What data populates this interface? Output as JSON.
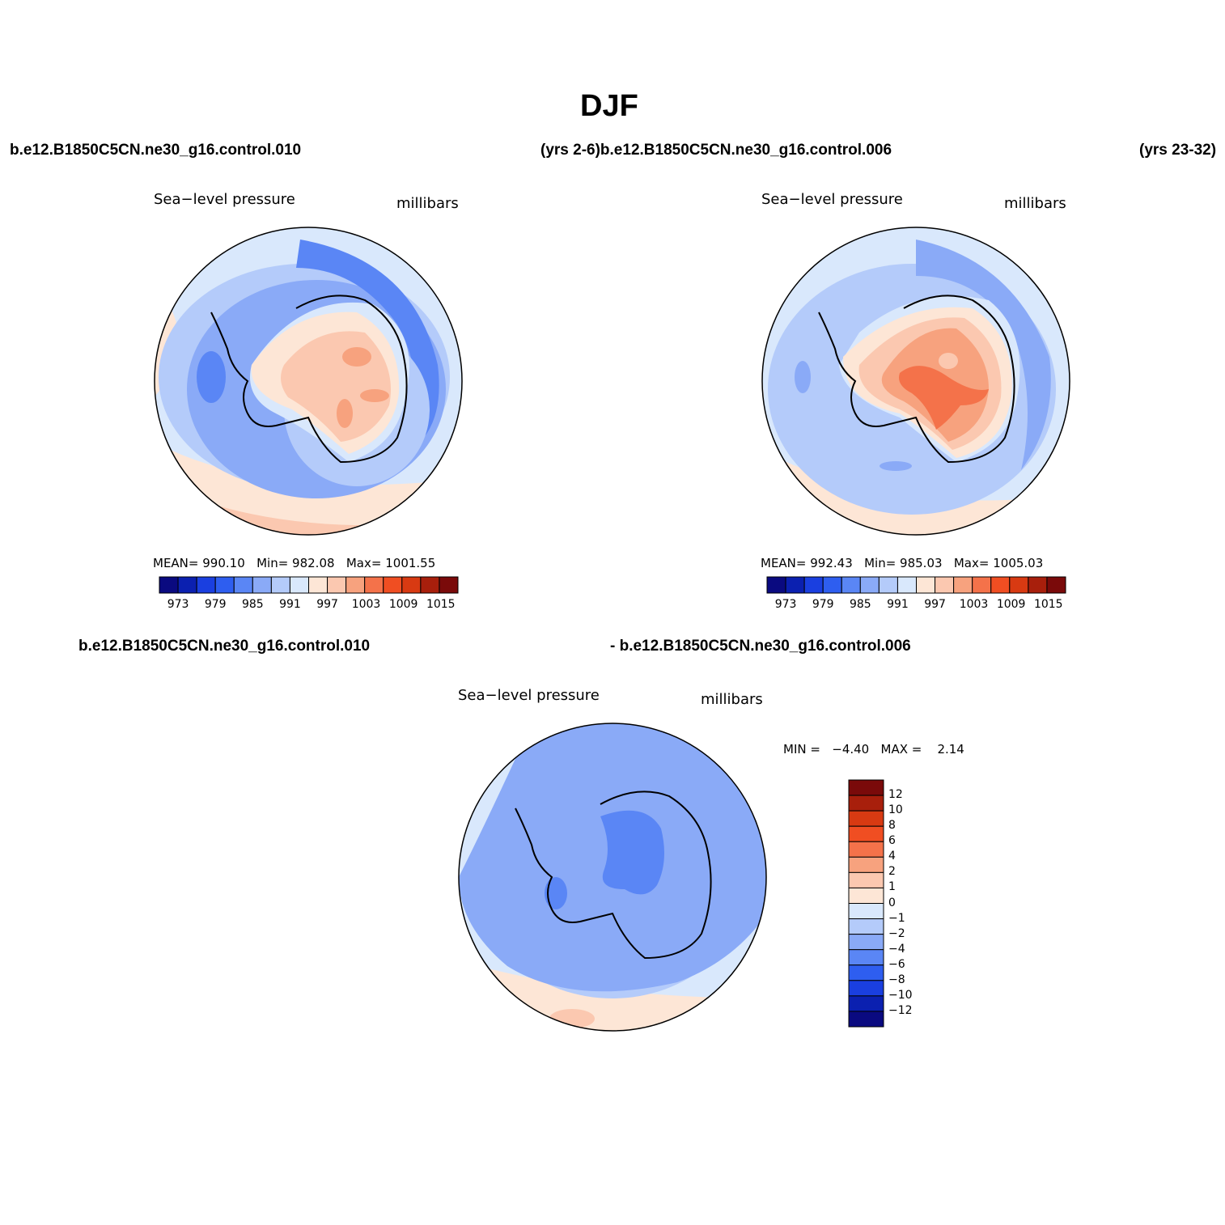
{
  "figure": {
    "title": "DJF",
    "case_labels": {
      "top_left": "b.e12.B1850C5CN.ne30_g16.control.010",
      "top_center": "(yrs 2-6)b.e12.B1850C5CN.ne30_g16.control.006",
      "top_right": "(yrs 23-32)",
      "bottom_left": "b.e12.B1850C5CN.ne30_g16.control.010",
      "bottom_center": "- b.e12.B1850C5CN.ne30_g16.control.006"
    }
  },
  "colors": {
    "abs_scale": [
      "#0a0a80",
      "#0b20b0",
      "#1a3fe0",
      "#2e5ef0",
      "#5a86f5",
      "#8aaaf7",
      "#b4cbfa",
      "#d9e8fc",
      "#fde6d6",
      "#fbc8b0",
      "#f7a27e",
      "#f4724a",
      "#f04e22",
      "#d83a12",
      "#a81f0c",
      "#7a0a0a"
    ],
    "coast": "#000000"
  },
  "panels": [
    {
      "id": "panel-1",
      "variable": "Sea−level pressure",
      "units": "millibars",
      "stats": {
        "mean_label": "MEAN=",
        "mean": "990.10",
        "min_label": "Min=",
        "min": "982.08",
        "max_label": "Max=",
        "max": "1001.55"
      },
      "colorbar_ticks": [
        "973",
        "979",
        "985",
        "991",
        "997",
        "1003",
        "1009",
        "1015"
      ]
    },
    {
      "id": "panel-2",
      "variable": "Sea−level pressure",
      "units": "millibars",
      "stats": {
        "mean_label": "MEAN=",
        "mean": "992.43",
        "min_label": "Min=",
        "min": "985.03",
        "max_label": "Max=",
        "max": "1005.03"
      },
      "colorbar_ticks": [
        "973",
        "979",
        "985",
        "991",
        "997",
        "1003",
        "1009",
        "1015"
      ]
    },
    {
      "id": "panel-diff",
      "variable": "Sea−level pressure",
      "units": "millibars",
      "stats_text": {
        "min_label": "MIN =",
        "min": "−4.40",
        "max_label": "MAX =",
        "max": "2.14"
      },
      "colorbar_ticks": [
        "12",
        "10",
        "8",
        "6",
        "4",
        "2",
        "1",
        "0",
        "−1",
        "−2",
        "−4",
        "−6",
        "−8",
        "−10",
        "−12"
      ],
      "colorbar_colors": [
        "#7a0a0a",
        "#a81f0c",
        "#d83a12",
        "#f04e22",
        "#f4724a",
        "#f7a27e",
        "#fbc8b0",
        "#fde6d6",
        "#d9e8fc",
        "#b4cbfa",
        "#8aaaf7",
        "#5a86f5",
        "#2e5ef0",
        "#1a3fe0",
        "#0b20b0",
        "#0a0a80"
      ]
    }
  ]
}
